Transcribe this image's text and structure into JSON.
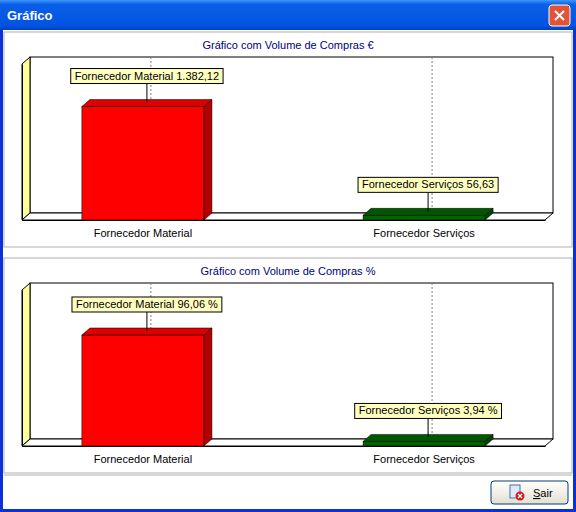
{
  "window": {
    "title": "Gráfico",
    "button": "Sair"
  },
  "chart_data": [
    {
      "type": "bar",
      "title": "Gráfico com Volume de Compras €",
      "categories": [
        "Fornecedor Material",
        "Fornecedor Serviços"
      ],
      "values": [
        1382.12,
        56.63
      ],
      "value_labels": [
        "1.382,12",
        "56,63"
      ],
      "colors": [
        "#ff0000",
        "#006400"
      ],
      "ylim": [
        0,
        1900
      ],
      "data_labels": true,
      "tick_labels": "x",
      "grid": true
    },
    {
      "type": "bar",
      "title": "Gráfico com Volume de Compras %",
      "categories": [
        "Fornecedor Material",
        "Fornecedor Serviços"
      ],
      "values": [
        96.06,
        3.94
      ],
      "value_labels": [
        "96,06 %",
        "3,94 %"
      ],
      "colors": [
        "#ff0000",
        "#006400"
      ],
      "ylim": [
        0,
        135
      ],
      "data_labels": true,
      "tick_labels": "x",
      "grid": true
    }
  ]
}
